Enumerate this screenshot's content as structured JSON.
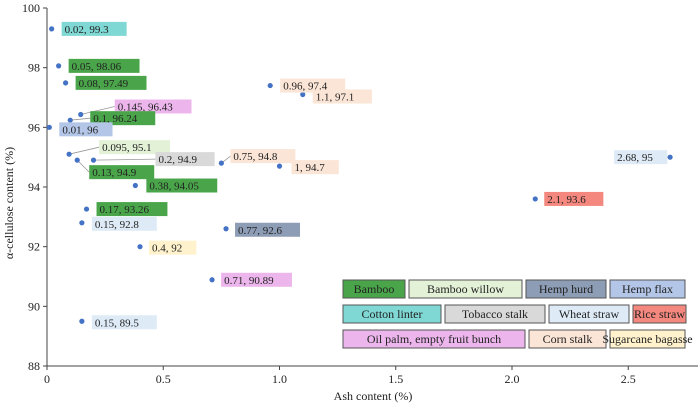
{
  "chart_data": {
    "type": "scatter",
    "title": "",
    "xlabel": "Ash content (%)",
    "ylabel": "α-cellulose content (%)",
    "xlim": [
      0,
      2.8
    ],
    "ylim": [
      88,
      100
    ],
    "xticks": [
      {
        "v": 0,
        "t": "0"
      },
      {
        "v": 0.5,
        "t": "0.5"
      },
      {
        "v": 1,
        "t": "1.0"
      },
      {
        "v": 1.5,
        "t": "1.5"
      },
      {
        "v": 2,
        "t": "2.0"
      },
      {
        "v": 2.5,
        "t": "2.5"
      }
    ],
    "yticks": [
      {
        "v": 88,
        "t": "88"
      },
      {
        "v": 90,
        "t": "90"
      },
      {
        "v": 92,
        "t": "92"
      },
      {
        "v": 94,
        "t": "94"
      },
      {
        "v": 96,
        "t": "96"
      },
      {
        "v": 98,
        "t": "98"
      },
      {
        "v": 100,
        "t": "100"
      }
    ],
    "grid": false,
    "legend_position": "bottom-right",
    "marker_color": "#4472c4",
    "categories": [
      {
        "name": "Bamboo",
        "color": "#4aa54a"
      },
      {
        "name": "Bamboo willow",
        "color": "#e3f1d6"
      },
      {
        "name": "Hemp hurd",
        "color": "#8d9db5"
      },
      {
        "name": "Hemp flax",
        "color": "#b4c6e7"
      },
      {
        "name": "Cotton  linter",
        "color": "#7fd8d3"
      },
      {
        "name": "Tobacco stalk",
        "color": "#d9d9d9"
      },
      {
        "name": "Wheat straw",
        "color": "#deebf7"
      },
      {
        "name": "Rice straw",
        "color": "#f4877e"
      },
      {
        "name": "Oil palm, empty fruit bunch",
        "color": "#ecb6ec"
      },
      {
        "name": "Corn stalk",
        "color": "#fbe5d6"
      },
      {
        "name": "Sugarcane bagasse",
        "color": "#fff2cc"
      }
    ],
    "points": [
      {
        "x": 0.02,
        "y": 99.3,
        "label": "0.02, 99.3",
        "category": 4
      },
      {
        "x": 0.05,
        "y": 98.06,
        "label": "0.05, 98.06",
        "category": 0
      },
      {
        "x": 0.08,
        "y": 97.49,
        "label": "0.08, 97.49",
        "category": 0
      },
      {
        "x": 0.145,
        "y": 96.43,
        "label": "0.145, 96.43",
        "category": 8
      },
      {
        "x": 0.1,
        "y": 96.24,
        "label": "0.1, 96.24",
        "category": 0
      },
      {
        "x": 0.01,
        "y": 96,
        "label": "0.01, 96",
        "category": 3
      },
      {
        "x": 0.095,
        "y": 95.1,
        "label": "0.095, 95.1",
        "category": 1
      },
      {
        "x": 0.2,
        "y": 94.9,
        "label": "0.2, 94.9",
        "category": 5
      },
      {
        "x": 0.13,
        "y": 94.9,
        "label": "0.13, 94.9",
        "category": 0
      },
      {
        "x": 0.38,
        "y": 94.05,
        "label": "0.38, 94.05",
        "category": 0
      },
      {
        "x": 0.17,
        "y": 93.26,
        "label": "0.17, 93.26",
        "category": 0
      },
      {
        "x": 0.15,
        "y": 92.8,
        "label": "0.15, 92.8",
        "category": 6
      },
      {
        "x": 0.4,
        "y": 92,
        "label": "0.4, 92",
        "category": 10
      },
      {
        "x": 0.15,
        "y": 89.5,
        "label": "0.15, 89.5",
        "category": 6
      },
      {
        "x": 0.96,
        "y": 97.4,
        "label": "0.96, 97.4",
        "category": 9
      },
      {
        "x": 1.1,
        "y": 97.1,
        "label": "1.1, 97.1",
        "category": 9
      },
      {
        "x": 0.75,
        "y": 94.8,
        "label": "0.75, 94.8",
        "category": 9
      },
      {
        "x": 1,
        "y": 94.7,
        "label": "1, 94.7",
        "category": 9
      },
      {
        "x": 0.77,
        "y": 92.6,
        "label": "0.77, 92.6",
        "category": 2
      },
      {
        "x": 0.71,
        "y": 90.89,
        "label": "0.71, 90.89",
        "category": 8
      },
      {
        "x": 2.68,
        "y": 95,
        "label": "2.68, 95",
        "category": 6
      },
      {
        "x": 2.1,
        "y": 93.6,
        "label": "2.1, 93.6",
        "category": 7
      }
    ]
  }
}
